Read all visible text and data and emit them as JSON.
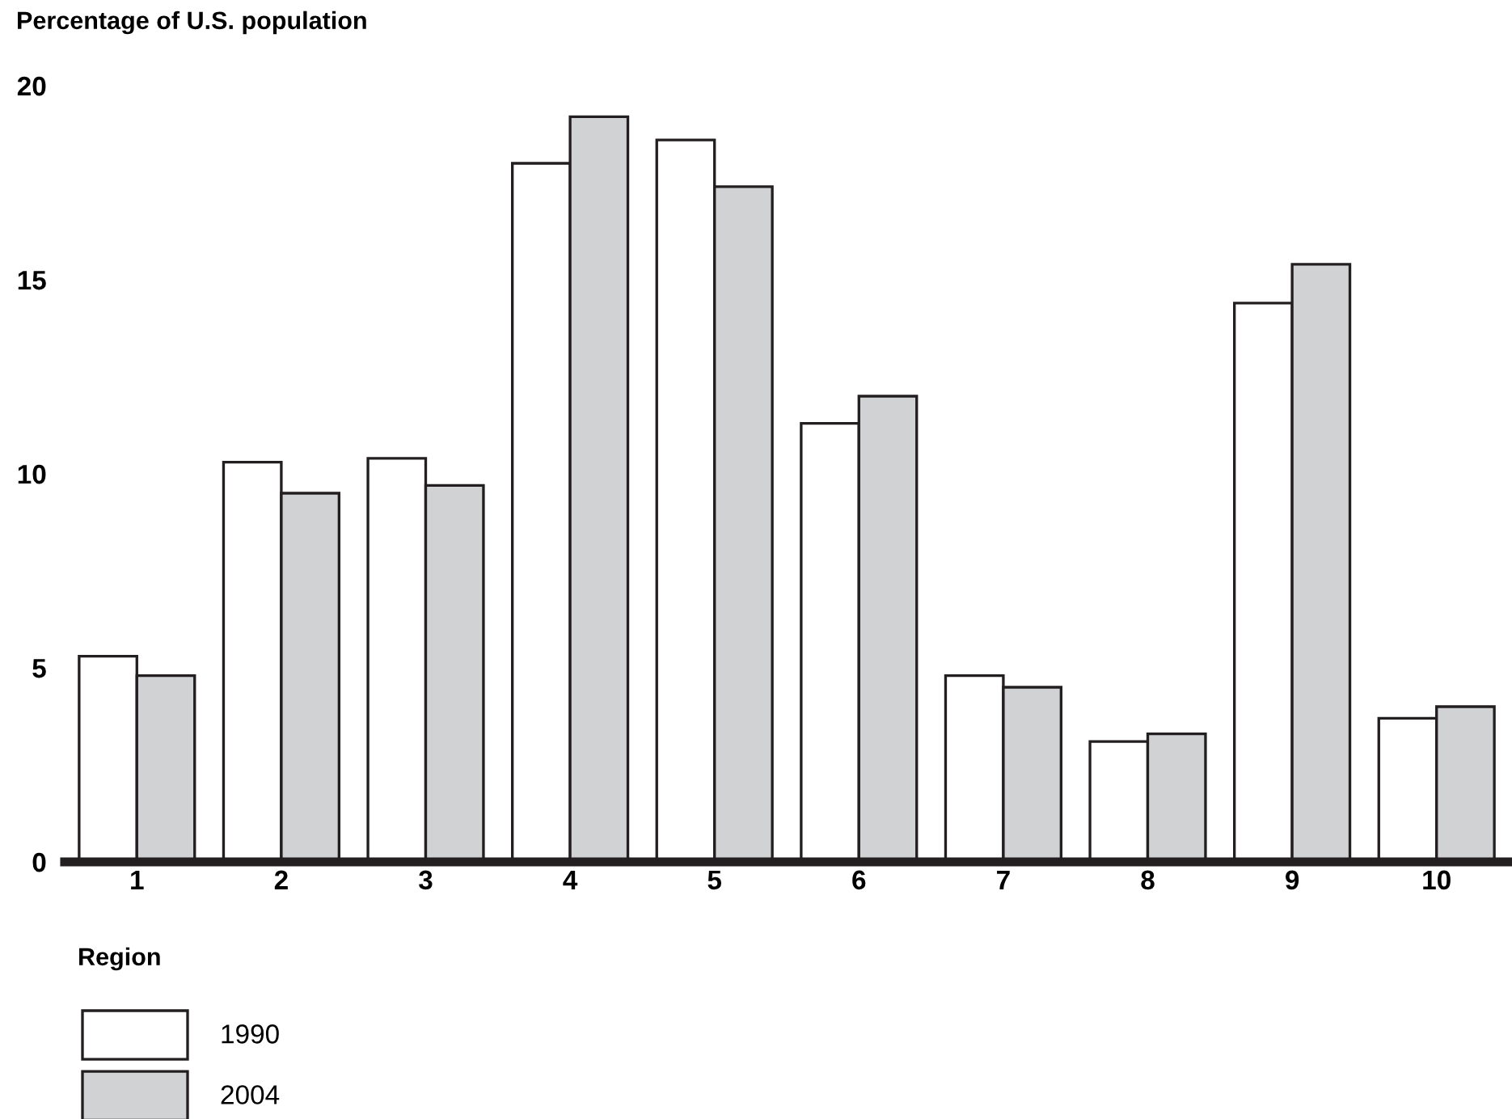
{
  "chart_data": {
    "type": "bar",
    "ylabel": "Percentage of U.S. population",
    "xlabel": "Region",
    "categories": [
      "1",
      "2",
      "3",
      "4",
      "5",
      "6",
      "7",
      "8",
      "9",
      "10"
    ],
    "series": [
      {
        "name": "1990",
        "color": "#ffffff",
        "values": [
          5.3,
          10.3,
          10.4,
          18.0,
          18.6,
          11.3,
          4.8,
          3.1,
          14.4,
          3.7
        ]
      },
      {
        "name": "2004",
        "color": "#d1d2d4",
        "values": [
          4.8,
          9.5,
          9.7,
          19.2,
          17.4,
          12.0,
          4.5,
          3.3,
          15.4,
          4.0
        ]
      }
    ],
    "ylim": [
      0,
      20
    ],
    "yticks": [
      0,
      5,
      10,
      15,
      20
    ],
    "legend": "bottom left",
    "grid": false
  }
}
